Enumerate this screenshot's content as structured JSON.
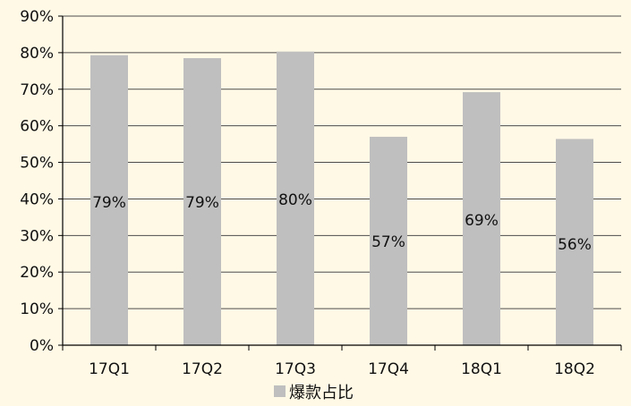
{
  "chart_data": {
    "type": "bar",
    "categories": [
      "17Q1",
      "17Q2",
      "17Q3",
      "17Q4",
      "18Q1",
      "18Q2"
    ],
    "series": [
      {
        "name": "爆款占比",
        "values": [
          79.3,
          78.5,
          80.3,
          57.0,
          69.2,
          56.4
        ],
        "data_labels": [
          "79%",
          "79%",
          "80%",
          "57%",
          "69%",
          "56%"
        ]
      }
    ],
    "y_ticks": [
      "0%",
      "10%",
      "20%",
      "30%",
      "40%",
      "50%",
      "60%",
      "70%",
      "80%",
      "90%"
    ],
    "ylim": [
      0,
      90
    ],
    "grid": true,
    "legend": "bottom-center"
  },
  "colors": {
    "background": "#FFF9E6",
    "bar": "#BFBFBF",
    "grid": "#4D4D4D",
    "axis": "#000000",
    "text": "#111111"
  }
}
